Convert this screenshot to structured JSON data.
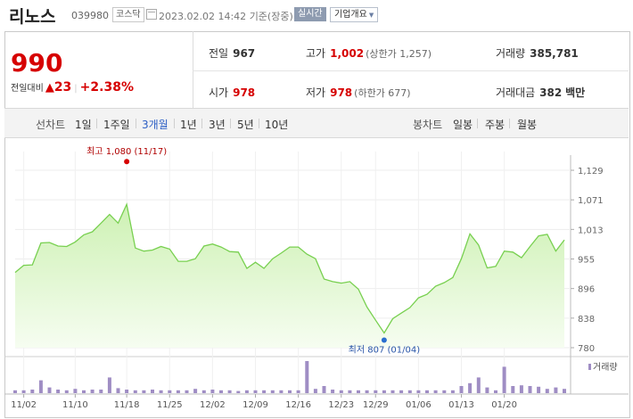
{
  "header": {
    "name": "리노스",
    "code": "039980",
    "market": "코스닥",
    "date": "2023.02.02 14:42",
    "basis": "기준(장중)",
    "realtime": "실시간",
    "overview": "기업개요"
  },
  "quote": {
    "price": "990",
    "change_label": "전일대비",
    "change_value": "23",
    "change_pct": "+2.38%",
    "prev_label": "전일",
    "prev_value": "967",
    "high_label": "고가",
    "high_value": "1,002",
    "high_sub": "(상한가 1,257)",
    "volume_label": "거래량",
    "volume_value": "385,781",
    "open_label": "시가",
    "open_value": "978",
    "low_label": "저가",
    "low_value": "978",
    "low_sub": "(하한가 677)",
    "amount_label": "거래대금",
    "amount_value": "382",
    "amount_unit": "백만"
  },
  "periods": {
    "line_chart": "선차트",
    "items": [
      "1일",
      "1주일",
      "3개월",
      "1년",
      "3년",
      "5년",
      "10년"
    ],
    "selected": "3개월",
    "candle_chart": "봉차트",
    "candle_items": [
      "일봉",
      "주봉",
      "월봉"
    ]
  },
  "colors": {
    "up": "#d60000",
    "line": "#78d050",
    "fill_top": "#d6f5c0",
    "volume": "#9f8dc4",
    "selected": "#2a5dc4"
  },
  "chart_data": {
    "type": "area",
    "yticks": [
      "1,129",
      "1,071",
      "1,013",
      "955",
      "896",
      "838",
      "780"
    ],
    "ylim": [
      780,
      1129
    ],
    "xticks": [
      "11/02",
      "11/10",
      "11/18",
      "11/25",
      "12/02",
      "12/09",
      "12/16",
      "12/23",
      "12/29",
      "01/06",
      "01/13",
      "01/20"
    ],
    "price": {
      "x": [
        "11/01",
        "11/02",
        "11/03",
        "11/04",
        "11/07",
        "11/08",
        "11/09",
        "11/10",
        "11/11",
        "11/14",
        "11/15",
        "11/16",
        "11/17",
        "11/18",
        "11/21",
        "11/22",
        "11/23",
        "11/24",
        "11/25",
        "11/28",
        "11/29",
        "11/30",
        "12/01",
        "12/02",
        "12/05",
        "12/06",
        "12/07",
        "12/08",
        "12/09",
        "12/12",
        "12/13",
        "12/14",
        "12/15",
        "12/16",
        "12/19",
        "12/20",
        "12/21",
        "12/22",
        "12/23",
        "12/26",
        "12/27",
        "12/28",
        "12/29",
        "01/02",
        "01/03",
        "01/04",
        "01/05",
        "01/06",
        "01/09",
        "01/10",
        "01/11",
        "01/12",
        "01/13",
        "01/16",
        "01/17",
        "01/18",
        "01/19",
        "01/20",
        "01/25",
        "01/26",
        "01/27",
        "01/30",
        "01/31",
        "02/01",
        "02/02"
      ],
      "values": [
        928,
        942,
        943,
        986,
        987,
        980,
        979,
        988,
        1002,
        1008,
        1025,
        1042,
        1025,
        1062,
        976,
        970,
        972,
        979,
        974,
        950,
        950,
        955,
        980,
        984,
        978,
        969,
        968,
        936,
        948,
        936,
        955,
        966,
        978,
        978,
        964,
        955,
        915,
        910,
        907,
        910,
        895,
        860,
        834,
        809,
        837,
        848,
        859,
        878,
        885,
        901,
        908,
        918,
        955,
        1004,
        982,
        937,
        940,
        970,
        968,
        957,
        979,
        1000,
        1003,
        970,
        992
      ]
    },
    "high_marker": {
      "label": "최고",
      "value": "1,080",
      "date": "(11/17)"
    },
    "low_marker": {
      "label": "최저",
      "value": "807",
      "date": "(01/04)"
    },
    "volume": {
      "label": "거래량",
      "values": [
        4,
        4,
        5,
        18,
        8,
        5,
        4,
        6,
        4,
        5,
        5,
        22,
        7,
        5,
        4,
        4,
        5,
        4,
        4,
        4,
        4,
        6,
        4,
        5,
        4,
        4,
        3,
        4,
        4,
        4,
        4,
        4,
        4,
        4,
        45,
        6,
        10,
        5,
        4,
        4,
        4,
        4,
        4,
        4,
        4,
        4,
        4,
        4,
        4,
        4,
        4,
        4,
        10,
        14,
        22,
        8,
        4,
        37,
        10,
        11,
        10,
        9,
        6,
        8,
        6
      ]
    }
  }
}
